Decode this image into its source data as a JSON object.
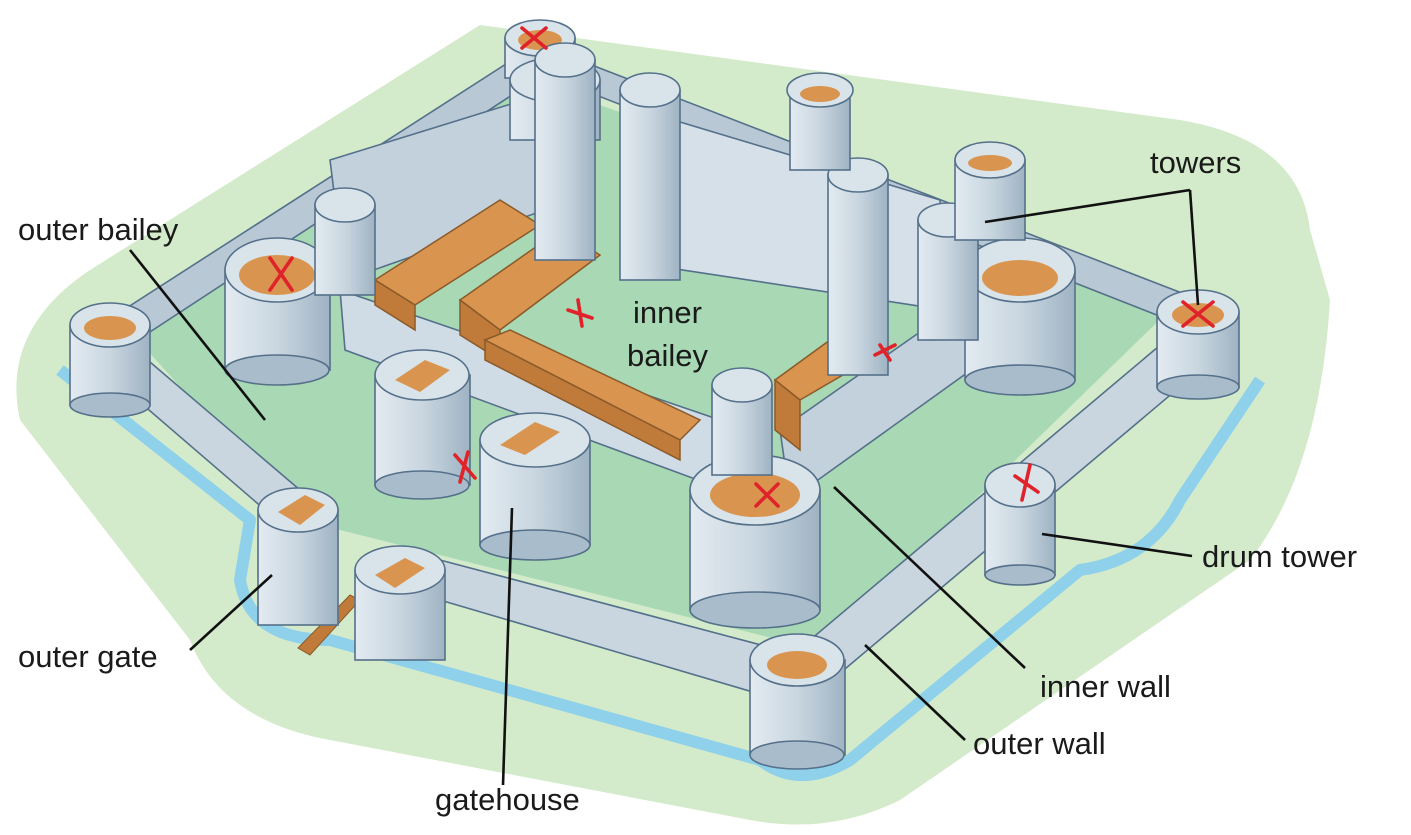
{
  "labels": {
    "towers": "towers",
    "outer_bailey": "outer bailey",
    "inner_bailey_line1": "inner",
    "inner_bailey_line2": "bailey",
    "drum_tower": "drum tower",
    "outer_gate": "outer gate",
    "inner_wall": "inner wall",
    "outer_wall": "outer wall",
    "gatehouse": "gatehouse"
  },
  "colors": {
    "stone": "#c9d6e0",
    "stone_dark": "#a9bccb",
    "roof": "#d9954f",
    "grass": "#cfe8c6",
    "grass_inner": "#a8d9b4",
    "moat": "#a8dcef",
    "marker": "#e0222a"
  }
}
